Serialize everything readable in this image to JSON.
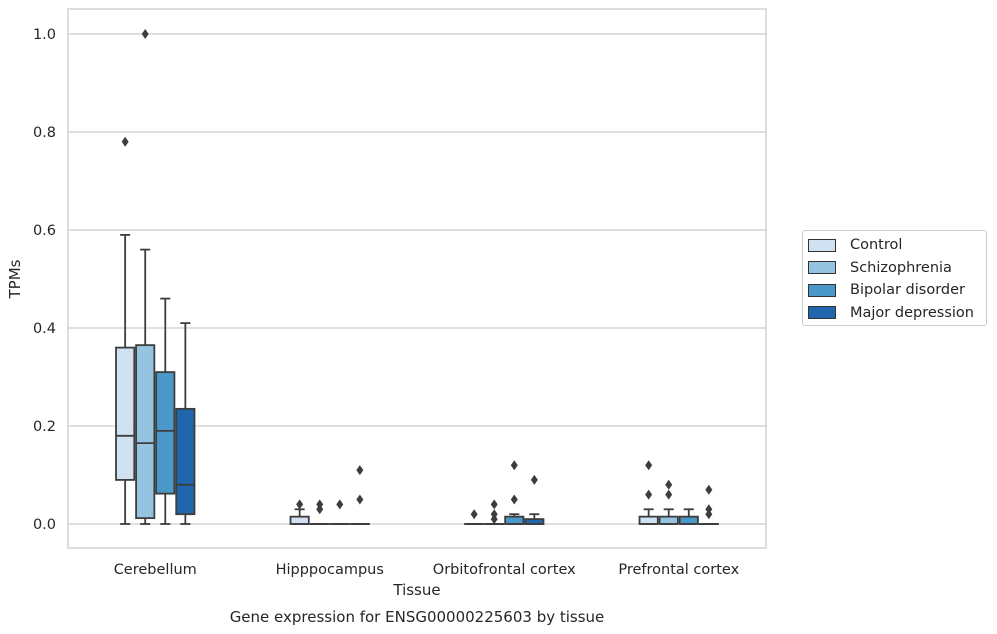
{
  "chart_data": {
    "type": "box",
    "title": "Gene expression for ENSG00000225603 by tissue",
    "xlabel": "Tissue",
    "ylabel": "TPMs",
    "ylim": [
      -0.048,
      1.05
    ],
    "yticks": [
      0.0,
      0.2,
      0.4,
      0.6,
      0.8,
      1.0
    ],
    "ytick_labels": [
      "0.0",
      "0.2",
      "0.4",
      "0.6",
      "0.8",
      "1.0"
    ],
    "grid": "horizontal",
    "legend_position": "right",
    "categories": [
      "Cerebellum",
      "Hipppocampus",
      "Orbitofrontal cortex",
      "Prefrontal cortex"
    ],
    "series": [
      {
        "name": "Control",
        "color": "#d0e1f2",
        "boxes": [
          {
            "whislo": 0.0,
            "q1": 0.09,
            "med": 0.18,
            "q3": 0.36,
            "whishi": 0.59,
            "fliers": [
              0.78
            ]
          },
          {
            "whislo": 0.0,
            "q1": 0.0,
            "med": 0.0,
            "q3": 0.015,
            "whishi": 0.03,
            "fliers": [
              0.04
            ]
          },
          {
            "whislo": 0.0,
            "q1": 0.0,
            "med": 0.0,
            "q3": 0.0,
            "whishi": 0.0,
            "fliers": [
              0.02
            ]
          },
          {
            "whislo": 0.0,
            "q1": 0.0,
            "med": 0.0,
            "q3": 0.015,
            "whishi": 0.03,
            "fliers": [
              0.06,
              0.12
            ]
          }
        ]
      },
      {
        "name": "Schizophrenia",
        "color": "#94c4df",
        "boxes": [
          {
            "whislo": 0.0,
            "q1": 0.012,
            "med": 0.165,
            "q3": 0.365,
            "whishi": 0.56,
            "fliers": [
              1.0
            ]
          },
          {
            "whislo": 0.0,
            "q1": 0.0,
            "med": 0.0,
            "q3": 0.0,
            "whishi": 0.0,
            "fliers": [
              0.03,
              0.04
            ]
          },
          {
            "whislo": 0.0,
            "q1": 0.0,
            "med": 0.0,
            "q3": 0.0,
            "whishi": 0.0,
            "fliers": [
              0.01,
              0.02,
              0.04
            ]
          },
          {
            "whislo": 0.0,
            "q1": 0.0,
            "med": 0.0,
            "q3": 0.015,
            "whishi": 0.03,
            "fliers": [
              0.06,
              0.08
            ]
          }
        ]
      },
      {
        "name": "Bipolar disorder",
        "color": "#4a98c9",
        "boxes": [
          {
            "whislo": 0.0,
            "q1": 0.062,
            "med": 0.19,
            "q3": 0.31,
            "whishi": 0.46,
            "fliers": []
          },
          {
            "whislo": 0.0,
            "q1": 0.0,
            "med": 0.0,
            "q3": 0.0,
            "whishi": 0.0,
            "fliers": [
              0.04
            ]
          },
          {
            "whislo": 0.0,
            "q1": 0.0,
            "med": 0.0,
            "q3": 0.015,
            "whishi": 0.02,
            "fliers": [
              0.05,
              0.12
            ]
          },
          {
            "whislo": 0.0,
            "q1": 0.0,
            "med": 0.0,
            "q3": 0.015,
            "whishi": 0.03,
            "fliers": []
          }
        ]
      },
      {
        "name": "Major depression",
        "color": "#2066ac",
        "boxes": [
          {
            "whislo": 0.0,
            "q1": 0.02,
            "med": 0.08,
            "q3": 0.235,
            "whishi": 0.41,
            "fliers": []
          },
          {
            "whislo": 0.0,
            "q1": 0.0,
            "med": 0.0,
            "q3": 0.0,
            "whishi": 0.0,
            "fliers": [
              0.05,
              0.11
            ]
          },
          {
            "whislo": 0.0,
            "q1": 0.0,
            "med": 0.0,
            "q3": 0.01,
            "whishi": 0.02,
            "fliers": [
              0.09
            ]
          },
          {
            "whislo": 0.0,
            "q1": 0.0,
            "med": 0.0,
            "q3": 0.0,
            "whishi": 0.0,
            "fliers": [
              0.02,
              0.03,
              0.07
            ]
          }
        ]
      }
    ]
  }
}
